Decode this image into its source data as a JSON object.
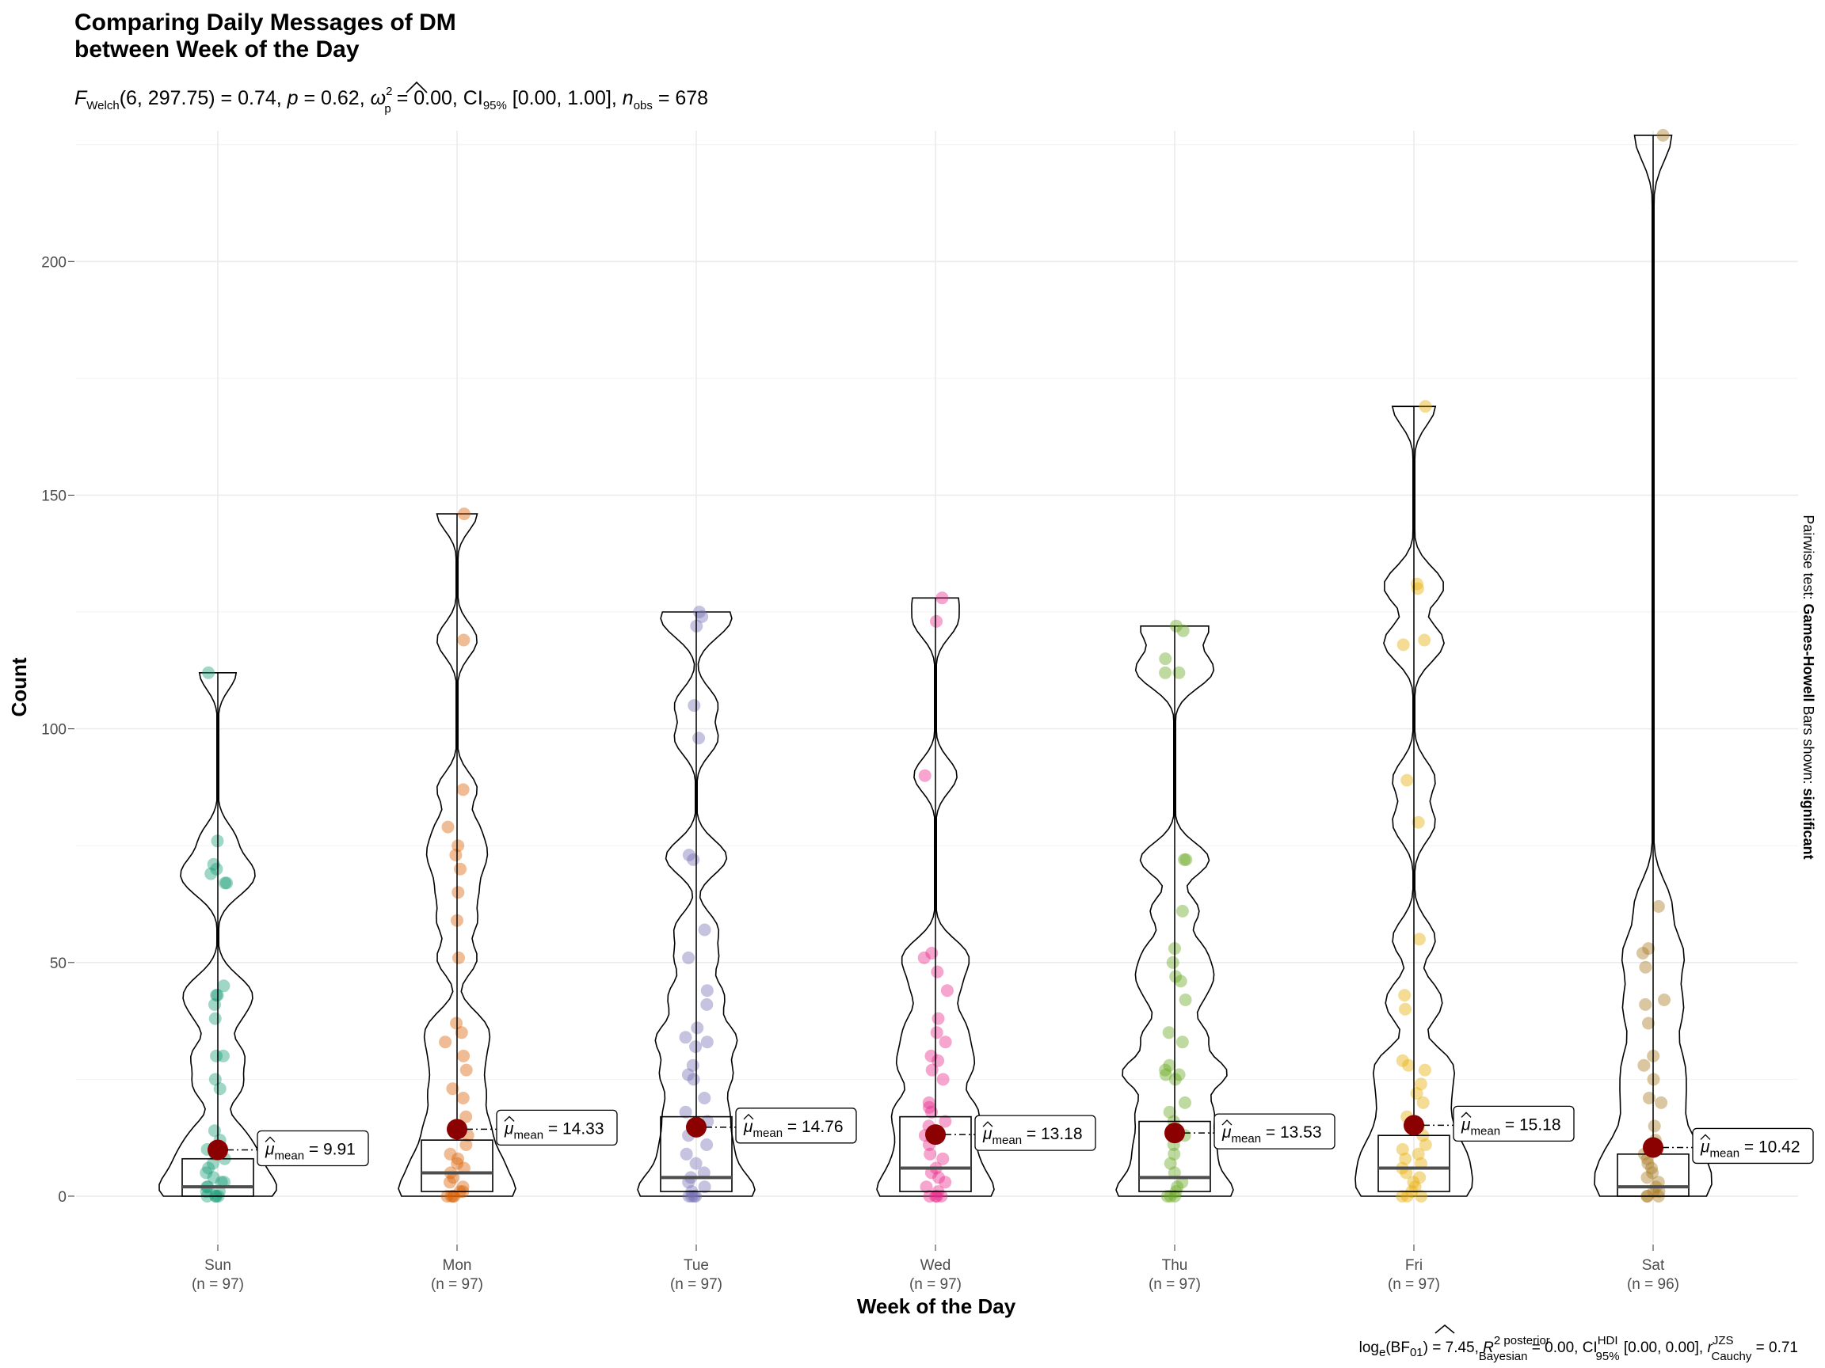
{
  "chart_data": {
    "type": "violin-box-scatter",
    "title_line1": "Comparing Daily Messages of DM",
    "title_line2": "between Week of the Day",
    "subtitle": {
      "f": "F",
      "welch": "Welch",
      "args": "(6, 297.75) = 0.74, ",
      "p": "p",
      "p_val": " = 0.62, ",
      "omega": "ω",
      "omega_sup": "2",
      "omega_sub": "p",
      "omega_val": " = 0.00, CI",
      "ci_sub": "95%",
      "ci_val": " [0.00, 1.00], ",
      "n": "n",
      "n_sub": "obs",
      "n_val": " = 678"
    },
    "xlabel": "Week of the Day",
    "ylabel": "Count",
    "ylim": [
      -10,
      228
    ],
    "yticks": [
      0,
      50,
      100,
      150,
      200
    ],
    "grid": true,
    "side_label": {
      "prefix": "Pairwise test: ",
      "test": "Games-Howell",
      "middle": " Bars shown: ",
      "shown": "significant"
    },
    "caption": {
      "a": "log",
      "a_sub": "e",
      "b": "(BF",
      "b_sub": "01",
      "c": ") = 7.45, ",
      "r": "R",
      "r_sup": "2 posterior",
      "r_sub": "Bayesian",
      "d": " = 0.00, CI",
      "ci_sup": "HDI",
      "ci_sub": "95%",
      "e": " [0.00, 0.00], ",
      "rc": "r",
      "rc_sup": "JZS",
      "rc_sub": "Cauchy",
      "f": " = 0.71"
    },
    "mean_prefix": "μ",
    "mean_sub": "mean",
    "mean_eq": " = ",
    "groups": [
      {
        "name": "Sun",
        "n_label": "(n = 97)",
        "color": "#1b9e77",
        "mean": 9.91,
        "mean_label": "9.91",
        "q1": 0,
        "median": 2,
        "q3": 8,
        "max": 112,
        "points": [
          112,
          76,
          71,
          70,
          69,
          67,
          67,
          45,
          43,
          43,
          41,
          38,
          30,
          30,
          25,
          23,
          14,
          12,
          10,
          9,
          8,
          7,
          6,
          5,
          4,
          3,
          3,
          2,
          2,
          1,
          1,
          0,
          0,
          0,
          0
        ]
      },
      {
        "name": "Mon",
        "n_label": "(n = 97)",
        "color": "#d95f02",
        "mean": 14.33,
        "mean_label": "14.33",
        "q1": 1,
        "median": 5,
        "q3": 12,
        "max": 146,
        "points": [
          146,
          119,
          87,
          79,
          75,
          73,
          70,
          65,
          59,
          51,
          37,
          35,
          33,
          30,
          27,
          23,
          21,
          17,
          15,
          13,
          11,
          9,
          8,
          7,
          6,
          5,
          4,
          3,
          2,
          1,
          1,
          0,
          0,
          0,
          0
        ]
      },
      {
        "name": "Tue",
        "n_label": "(n = 97)",
        "color": "#7570b3",
        "mean": 14.76,
        "mean_label": "14.76",
        "q1": 1,
        "median": 4,
        "q3": 17,
        "max": 125,
        "points": [
          125,
          124,
          122,
          105,
          98,
          73,
          72,
          57,
          51,
          44,
          41,
          36,
          34,
          33,
          32,
          28,
          26,
          25,
          21,
          18,
          16,
          13,
          11,
          9,
          7,
          5,
          4,
          3,
          2,
          1,
          0,
          0,
          0,
          0
        ]
      },
      {
        "name": "Wed",
        "n_label": "(n = 97)",
        "color": "#e7298a",
        "mean": 13.18,
        "mean_label": "13.18",
        "q1": 1,
        "median": 6,
        "q3": 17,
        "max": 128,
        "points": [
          128,
          123,
          90,
          52,
          51,
          48,
          44,
          38,
          35,
          33,
          30,
          29,
          27,
          25,
          20,
          19,
          18,
          16,
          15,
          13,
          11,
          9,
          8,
          6,
          5,
          4,
          3,
          2,
          1,
          0,
          0,
          0,
          0
        ]
      },
      {
        "name": "Thu",
        "n_label": "(n = 97)",
        "color": "#66a61e",
        "mean": 13.53,
        "mean_label": "13.53",
        "q1": 1,
        "median": 4,
        "q3": 16,
        "max": 122,
        "points": [
          122,
          121,
          115,
          112,
          112,
          72,
          72,
          61,
          53,
          50,
          47,
          46,
          42,
          35,
          33,
          28,
          27,
          26,
          26,
          25,
          20,
          18,
          16,
          13,
          11,
          9,
          7,
          5,
          3,
          2,
          1,
          0,
          0,
          0
        ]
      },
      {
        "name": "Fri",
        "n_label": "(n = 97)",
        "color": "#e6ab02",
        "mean": 15.18,
        "mean_label": "15.18",
        "q1": 1,
        "median": 6,
        "q3": 13,
        "max": 169,
        "points": [
          169,
          131,
          130,
          119,
          118,
          89,
          80,
          55,
          43,
          40,
          29,
          28,
          27,
          24,
          22,
          20,
          17,
          15,
          13,
          11,
          10,
          9,
          8,
          7,
          6,
          5,
          4,
          3,
          2,
          1,
          0,
          0,
          0
        ]
      },
      {
        "name": "Sat",
        "n_label": "(n = 96)",
        "color": "#a6761d",
        "mean": 10.42,
        "mean_label": "10.42",
        "q1": 0,
        "median": 2,
        "q3": 9,
        "max": 227,
        "points": [
          227,
          62,
          53,
          52,
          49,
          42,
          41,
          37,
          30,
          28,
          25,
          21,
          20,
          15,
          12,
          10,
          9,
          8,
          7,
          6,
          5,
          4,
          3,
          2,
          1,
          1,
          0,
          0,
          0
        ]
      }
    ]
  }
}
